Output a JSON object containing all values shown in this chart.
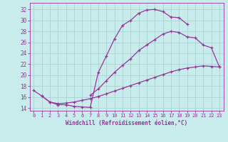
{
  "bg_color": "#c8ecec",
  "grid_color": "#a8d4d4",
  "line_color": "#993399",
  "xlabel": "Windchill (Refroidissement éolien,°C)",
  "xlim_min": -0.5,
  "xlim_max": 23.5,
  "ylim_min": 13.5,
  "ylim_max": 33.2,
  "yticks": [
    14,
    16,
    18,
    20,
    22,
    24,
    26,
    28,
    30,
    32
  ],
  "xticks": [
    0,
    1,
    2,
    3,
    4,
    5,
    6,
    7,
    8,
    9,
    10,
    11,
    12,
    13,
    14,
    15,
    16,
    17,
    18,
    19,
    20,
    21,
    22,
    23
  ],
  "curve_top_x": [
    0,
    1,
    2,
    3,
    4,
    5,
    6,
    7,
    8,
    9,
    10,
    11,
    12,
    13,
    14,
    15,
    16,
    17,
    18,
    19
  ],
  "curve_top_y": [
    17.2,
    16.2,
    15.1,
    14.6,
    14.6,
    14.3,
    14.2,
    14.1,
    20.5,
    23.5,
    26.6,
    29.1,
    30.0,
    31.3,
    31.9,
    32.0,
    31.6,
    30.6,
    30.5,
    29.3
  ],
  "curve_mid_x": [
    7,
    8,
    9,
    10,
    11,
    12,
    13,
    14,
    15,
    16,
    17,
    18,
    19,
    20,
    21,
    22,
    23
  ],
  "curve_mid_y": [
    16.3,
    17.5,
    19.0,
    20.5,
    21.8,
    23.0,
    24.5,
    25.5,
    26.5,
    27.5,
    28.0,
    27.8,
    27.0,
    26.8,
    25.5,
    25.0,
    21.5
  ],
  "curve_bot_x": [
    1,
    2,
    3,
    4,
    5,
    6,
    7,
    8,
    9,
    10,
    11,
    12,
    13,
    14,
    15,
    16,
    17,
    18,
    19,
    20,
    21,
    22,
    23
  ],
  "curve_bot_y": [
    16.2,
    15.1,
    14.8,
    14.9,
    15.1,
    15.4,
    15.7,
    16.1,
    16.6,
    17.1,
    17.6,
    18.1,
    18.6,
    19.1,
    19.6,
    20.1,
    20.6,
    21.0,
    21.3,
    21.5,
    21.7,
    21.6,
    21.5
  ]
}
